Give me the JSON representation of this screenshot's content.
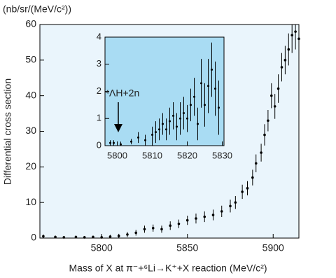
{
  "chart_data": [
    {
      "type": "scatter",
      "y_unit_label": "(nb/sr/(MeV/c²))",
      "y_label": "Differential cross section",
      "x_label": "Mass of X at π⁻+⁶Li→K⁺+X reaction (MeV/c²)",
      "x": [
        5766,
        5773,
        5778,
        5785,
        5790,
        5795,
        5800,
        5805,
        5810,
        5815,
        5820,
        5825,
        5830,
        5835,
        5840,
        5845,
        5850,
        5855,
        5860,
        5865,
        5870,
        5875,
        5878,
        5882,
        5885,
        5888,
        5890,
        5893,
        5895,
        5897,
        5899,
        5901,
        5903,
        5905,
        5907,
        5909,
        5911,
        5913,
        5915
      ],
      "values": [
        0.5,
        0.3,
        0.2,
        0.3,
        0.2,
        0.3,
        0.2,
        0.4,
        0.6,
        1,
        1.5,
        2.5,
        2.8,
        2.5,
        3.5,
        4,
        5,
        5.5,
        6,
        6.5,
        7.5,
        9,
        10,
        13,
        14,
        17,
        21,
        24,
        29,
        33,
        40,
        37,
        42,
        48,
        50,
        53,
        57,
        58,
        56
      ],
      "errors": [
        0.5,
        0.4,
        0.4,
        0.4,
        0.4,
        0.4,
        0.5,
        0.5,
        0.6,
        0.7,
        0.8,
        1,
        1,
        1,
        1.2,
        1.2,
        1.3,
        1.4,
        1.5,
        1.5,
        1.6,
        1.8,
        1.8,
        2,
        2,
        2.2,
        2.5,
        2.5,
        3,
        3,
        3.5,
        3.5,
        4,
        4,
        4,
        4.5,
        5,
        5,
        5
      ],
      "color": "#000000",
      "background": "#eaf5fc",
      "xlim": [
        5764,
        5915
      ],
      "ylim": [
        0,
        60
      ],
      "xticks": [
        5800,
        5850,
        5900
      ],
      "yticks": [
        0,
        10,
        20,
        30,
        40,
        50,
        60
      ]
    },
    {
      "type": "scatter",
      "annotation": "⁴ΛH+2n",
      "x": [
        5798,
        5799,
        5801,
        5804,
        5806,
        5808,
        5810,
        5811,
        5812,
        5813,
        5814,
        5815,
        5816,
        5817,
        5818,
        5819,
        5820,
        5821,
        5822,
        5823,
        5824,
        5825,
        5826,
        5827,
        5828,
        5829
      ],
      "values": [
        0.1,
        0.1,
        0.05,
        0.15,
        0.3,
        0.2,
        0.4,
        0.5,
        0.6,
        0.8,
        0.6,
        0.9,
        1.1,
        0.7,
        1.0,
        1.2,
        1.0,
        1.5,
        1.8,
        0.8,
        2.3,
        1.5,
        2.2,
        2.8,
        2.1,
        1.4
      ],
      "errors": [
        0.1,
        0.1,
        0.1,
        0.1,
        0.2,
        0.2,
        0.3,
        0.4,
        0.4,
        0.4,
        0.4,
        0.5,
        0.5,
        0.5,
        0.6,
        0.6,
        0.5,
        0.6,
        0.7,
        0.6,
        0.9,
        0.8,
        1,
        1,
        1,
        1
      ],
      "color": "#000000",
      "background": "#a9dcf3",
      "xlim": [
        5796.5,
        5830.5
      ],
      "ylim": [
        0,
        4
      ],
      "xticks": [
        5800,
        5810,
        5820,
        5830
      ],
      "yticks": [
        0,
        1,
        2,
        3,
        4
      ]
    }
  ]
}
